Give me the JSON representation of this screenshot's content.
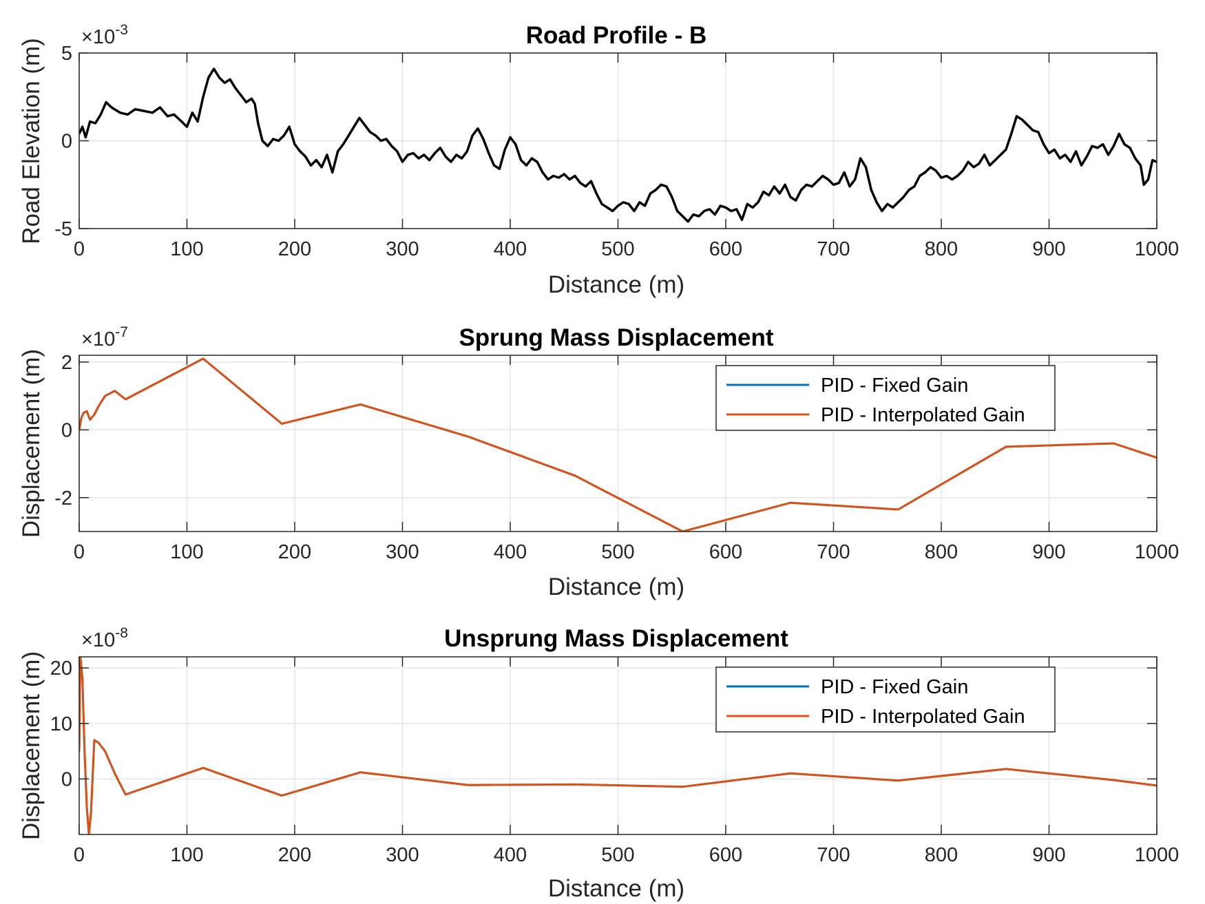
{
  "chart_data": [
    {
      "type": "line",
      "title": "Road Profile - B",
      "xlabel": "Distance (m)",
      "ylabel": "Road Elevation (m)",
      "y_exponent": "-3",
      "xlim": [
        0,
        1000
      ],
      "ylim": [
        -5,
        5
      ],
      "xticks": [
        0,
        100,
        200,
        300,
        400,
        500,
        600,
        700,
        800,
        900,
        1000
      ],
      "yticks": [
        -5,
        0,
        5
      ],
      "grid": true,
      "legend": null,
      "colors": {
        "road": "#000000"
      },
      "series": [
        {
          "x": [
            0,
            3,
            6,
            10,
            15,
            20,
            25,
            30,
            38,
            45,
            52,
            60,
            68,
            75,
            82,
            88,
            95,
            100,
            105,
            110,
            115,
            120,
            125,
            130,
            135,
            140,
            145,
            150,
            155,
            160,
            163,
            166,
            170,
            175,
            180,
            185,
            190,
            195,
            200,
            205,
            210,
            215,
            220,
            225,
            230,
            235,
            240,
            245,
            250,
            255,
            260,
            265,
            270,
            275,
            280,
            285,
            290,
            295,
            300,
            305,
            310,
            315,
            320,
            325,
            330,
            335,
            340,
            345,
            350,
            355,
            360,
            365,
            370,
            375,
            380,
            385,
            390,
            395,
            400,
            405,
            410,
            415,
            420,
            425,
            430,
            435,
            440,
            445,
            450,
            455,
            460,
            465,
            470,
            475,
            480,
            485,
            490,
            495,
            500,
            505,
            510,
            515,
            520,
            525,
            530,
            535,
            540,
            545,
            550,
            555,
            560,
            565,
            570,
            575,
            580,
            585,
            590,
            595,
            600,
            605,
            610,
            615,
            620,
            625,
            630,
            635,
            640,
            645,
            650,
            655,
            660,
            665,
            670,
            675,
            680,
            685,
            690,
            695,
            700,
            705,
            710,
            715,
            720,
            725,
            730,
            735,
            740,
            745,
            750,
            755,
            760,
            765,
            770,
            775,
            780,
            785,
            790,
            795,
            800,
            805,
            810,
            815,
            820,
            825,
            830,
            835,
            840,
            845,
            850,
            855,
            860,
            865,
            870,
            875,
            880,
            885,
            890,
            895,
            900,
            905,
            910,
            915,
            920,
            925,
            930,
            935,
            940,
            945,
            950,
            955,
            960,
            965,
            970,
            975,
            980,
            985,
            988,
            992,
            996,
            1000
          ],
          "y": [
            0.4,
            0.8,
            0.2,
            1.1,
            1.0,
            1.5,
            2.2,
            1.9,
            1.6,
            1.5,
            1.8,
            1.7,
            1.6,
            1.9,
            1.4,
            1.5,
            1.1,
            0.8,
            1.6,
            1.1,
            2.5,
            3.6,
            4.1,
            3.6,
            3.3,
            3.5,
            3.0,
            2.6,
            2.2,
            2.4,
            2.1,
            1.0,
            0.0,
            -0.3,
            0.1,
            0.0,
            0.3,
            0.8,
            -0.2,
            -0.6,
            -0.9,
            -1.4,
            -1.1,
            -1.5,
            -0.8,
            -1.8,
            -0.6,
            -0.2,
            0.3,
            0.8,
            1.3,
            0.9,
            0.5,
            0.3,
            0.0,
            0.1,
            -0.3,
            -0.6,
            -1.2,
            -0.8,
            -0.7,
            -1.0,
            -0.8,
            -1.1,
            -0.7,
            -0.4,
            -0.9,
            -1.2,
            -0.8,
            -1.0,
            -0.6,
            0.3,
            0.7,
            0.1,
            -0.7,
            -1.4,
            -1.6,
            -0.5,
            0.2,
            -0.2,
            -1.1,
            -1.4,
            -1.0,
            -1.2,
            -1.8,
            -2.2,
            -2.0,
            -2.1,
            -1.9,
            -2.2,
            -2.0,
            -2.4,
            -2.6,
            -2.3,
            -3.0,
            -3.6,
            -3.8,
            -4.0,
            -3.7,
            -3.5,
            -3.6,
            -4.0,
            -3.5,
            -3.7,
            -3.0,
            -2.8,
            -2.5,
            -2.6,
            -3.2,
            -4.0,
            -4.3,
            -4.6,
            -4.2,
            -4.3,
            -4.0,
            -3.9,
            -4.2,
            -3.7,
            -3.8,
            -4.0,
            -3.9,
            -4.5,
            -3.6,
            -3.8,
            -3.5,
            -2.9,
            -3.1,
            -2.6,
            -3.0,
            -2.5,
            -3.2,
            -3.4,
            -2.8,
            -2.5,
            -2.6,
            -2.3,
            -2.0,
            -2.2,
            -2.5,
            -2.4,
            -1.8,
            -2.6,
            -2.2,
            -1.0,
            -1.5,
            -2.8,
            -3.5,
            -4.0,
            -3.6,
            -3.8,
            -3.5,
            -3.2,
            -2.8,
            -2.6,
            -2.0,
            -1.8,
            -1.5,
            -1.7,
            -2.1,
            -2.0,
            -2.2,
            -2.0,
            -1.7,
            -1.2,
            -1.5,
            -1.3,
            -0.8,
            -1.4,
            -1.1,
            -0.8,
            -0.5,
            0.4,
            1.4,
            1.2,
            0.9,
            0.6,
            0.5,
            -0.2,
            -0.7,
            -0.5,
            -1.0,
            -0.8,
            -1.2,
            -0.6,
            -1.4,
            -0.9,
            -0.3,
            -0.4,
            -0.2,
            -0.8,
            -0.3,
            0.4,
            -0.2,
            -0.4,
            -1.0,
            -1.4,
            -2.5,
            -2.2,
            -1.1,
            -1.2
          ]
        }
      ]
    },
    {
      "type": "line",
      "title": "Sprung Mass Displacement",
      "xlabel": "Distance (m)",
      "ylabel": "Displacement (m)",
      "y_exponent": "-7",
      "xlim": [
        0,
        1000
      ],
      "ylim": [
        -3,
        2.2
      ],
      "xticks": [
        0,
        100,
        200,
        300,
        400,
        500,
        600,
        700,
        800,
        900,
        1000
      ],
      "yticks": [
        -2,
        0,
        2
      ],
      "grid": true,
      "legend": "top-right",
      "series": [
        {
          "name": "PID - Fixed Gain",
          "color": "#0072BD",
          "x": [
            0,
            2,
            4,
            7,
            10,
            14,
            18,
            24,
            33,
            43,
            115,
            188,
            261,
            361,
            460,
            560,
            660,
            760,
            860,
            960,
            1000
          ],
          "y": [
            0,
            0.35,
            0.5,
            0.55,
            0.3,
            0.45,
            0.7,
            1.0,
            1.15,
            0.9,
            2.1,
            0.18,
            0.75,
            -0.2,
            -1.35,
            -3.0,
            -2.15,
            -2.35,
            -0.5,
            -0.4,
            -0.82
          ]
        },
        {
          "name": "PID - Interpolated Gain",
          "color": "#D95319",
          "x": [
            0,
            2,
            4,
            7,
            10,
            14,
            18,
            24,
            33,
            43,
            115,
            188,
            261,
            361,
            460,
            560,
            660,
            760,
            860,
            960,
            1000
          ],
          "y": [
            0,
            0.35,
            0.5,
            0.55,
            0.3,
            0.45,
            0.7,
            1.0,
            1.15,
            0.9,
            2.1,
            0.18,
            0.75,
            -0.2,
            -1.35,
            -3.0,
            -2.15,
            -2.35,
            -0.5,
            -0.4,
            -0.82
          ]
        }
      ]
    },
    {
      "type": "line",
      "title": "Unsprung Mass Displacement",
      "xlabel": "Distance (m)",
      "ylabel": "Displacement (m)",
      "y_exponent": "-8",
      "xlim": [
        0,
        1000
      ],
      "ylim": [
        -10,
        22
      ],
      "xticks": [
        0,
        100,
        200,
        300,
        400,
        500,
        600,
        700,
        800,
        900,
        1000
      ],
      "yticks": [
        0,
        10,
        20
      ],
      "grid": true,
      "legend": "top-right",
      "series": [
        {
          "name": "PID - Fixed Gain",
          "color": "#0072BD",
          "x": [
            0,
            1,
            3,
            5,
            7,
            9,
            11,
            14,
            18,
            24,
            33,
            43,
            115,
            188,
            261,
            361,
            460,
            560,
            660,
            760,
            860,
            960,
            1000
          ],
          "y": [
            5,
            22,
            18,
            5,
            -5,
            -10,
            -6,
            7,
            6.5,
            5,
            1,
            -2.8,
            2,
            -3,
            1.2,
            -1.1,
            -1,
            -1.4,
            1,
            -0.3,
            1.8,
            -0.2,
            -1.2
          ]
        },
        {
          "name": "PID - Interpolated Gain",
          "color": "#D95319",
          "x": [
            0,
            1,
            3,
            5,
            7,
            9,
            11,
            14,
            18,
            24,
            33,
            43,
            115,
            188,
            261,
            361,
            460,
            560,
            660,
            760,
            860,
            960,
            1000
          ],
          "y": [
            5,
            22,
            18,
            5,
            -5,
            -10,
            -6,
            7,
            6.5,
            5,
            1,
            -2.8,
            2,
            -3,
            1.2,
            -1.1,
            -1,
            -1.4,
            1,
            -0.3,
            1.8,
            -0.2,
            -1.2
          ]
        }
      ]
    }
  ]
}
